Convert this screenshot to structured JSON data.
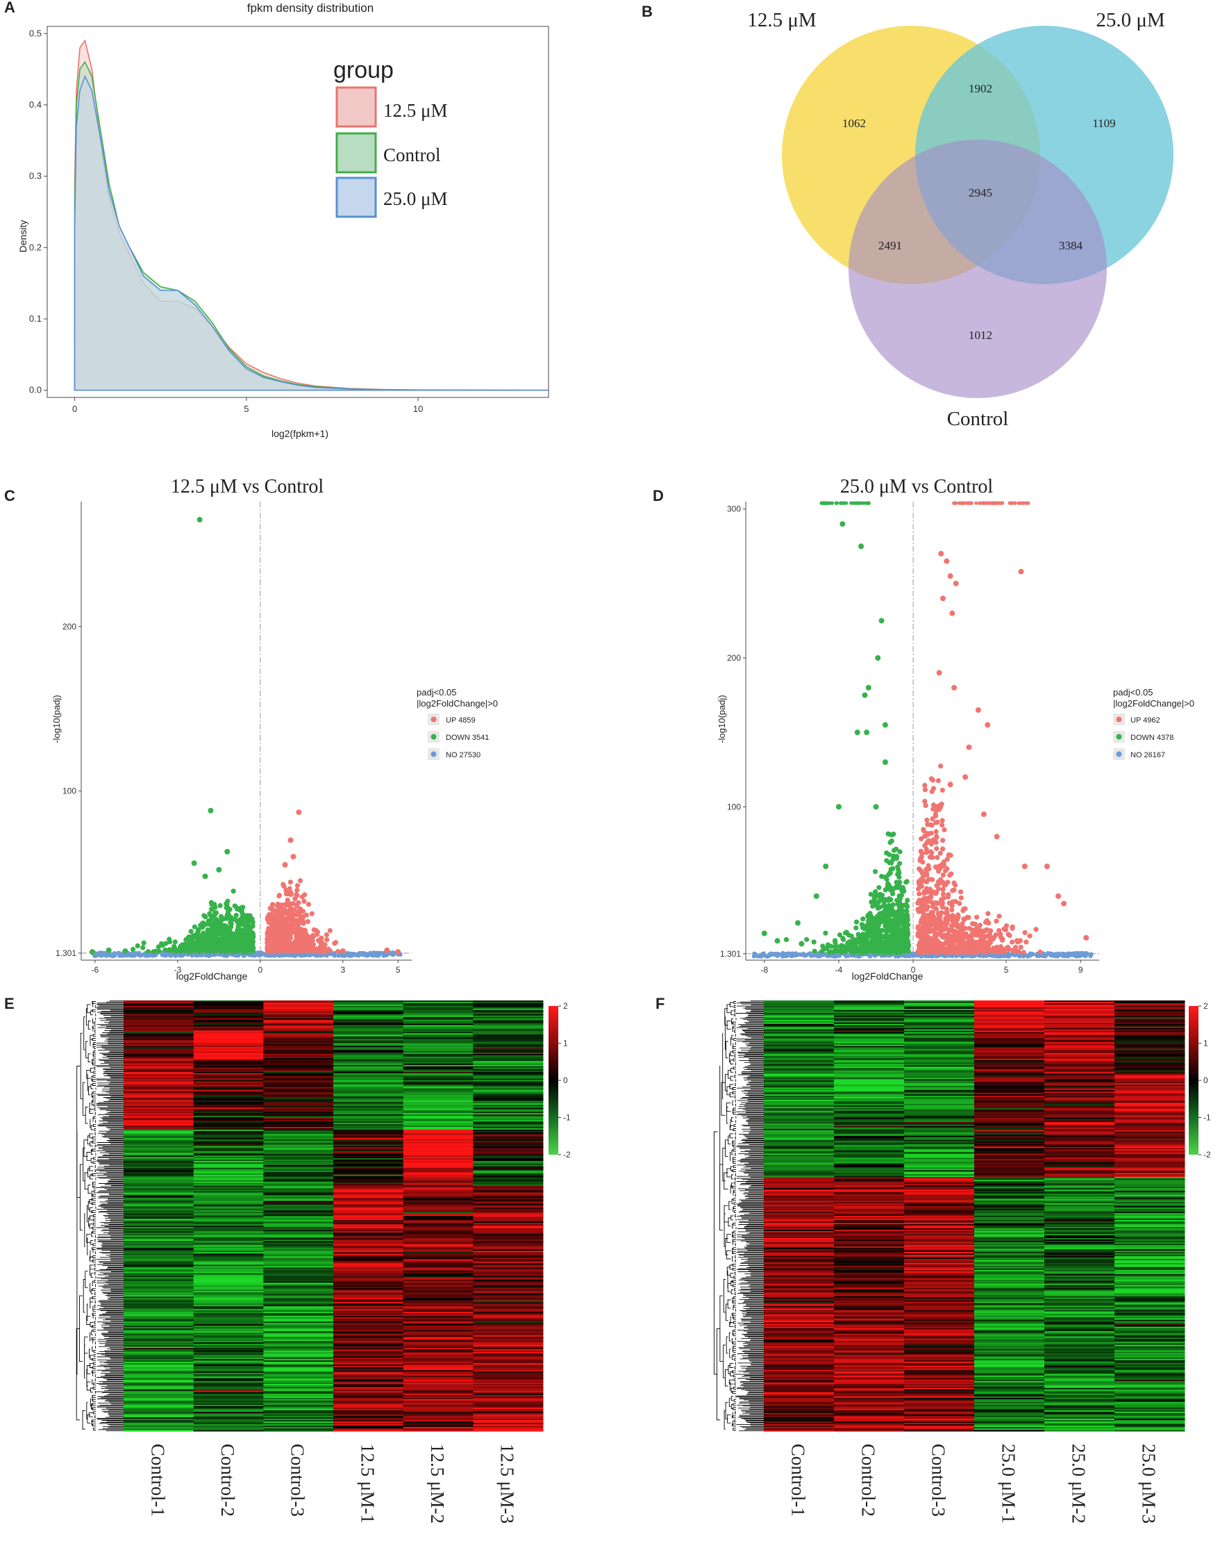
{
  "panels": {
    "A": "A",
    "B": "B",
    "C": "C",
    "D": "D",
    "E": "E",
    "F": "F"
  },
  "chart_data": [
    {
      "panel": "A",
      "type": "area",
      "title": "fpkm density distribution",
      "xlabel": "log2(fpkm+1)",
      "ylabel": "Density",
      "xlim": [
        -0.8,
        13.8
      ],
      "ylim": [
        -0.01,
        0.51
      ],
      "xticks": [
        0,
        5,
        10
      ],
      "yticks": [
        0.0,
        0.1,
        0.2,
        0.3,
        0.4,
        0.5
      ],
      "ytick_labels": [
        "0.0",
        "0.1",
        "0.2",
        "0.3",
        "0.4",
        "0.5"
      ],
      "legend_title": "group",
      "legend_position": "top-right",
      "series": [
        {
          "name": "12.5 μM",
          "color": "#e8756e",
          "fill": "#f2c8c6",
          "x": [
            0,
            0.05,
            0.15,
            0.3,
            0.5,
            0.8,
            1.0,
            1.3,
            1.6,
            2.0,
            2.5,
            3.0,
            3.5,
            4.0,
            4.5,
            5.0,
            5.5,
            6.0,
            6.5,
            7.0,
            8.0,
            9.0,
            10.0,
            12.0,
            13.8
          ],
          "y": [
            0.29,
            0.42,
            0.48,
            0.49,
            0.45,
            0.33,
            0.27,
            0.22,
            0.19,
            0.15,
            0.125,
            0.125,
            0.115,
            0.09,
            0.06,
            0.037,
            0.025,
            0.016,
            0.01,
            0.006,
            0.0025,
            0.001,
            0.0005,
            0.0001,
            0.0
          ]
        },
        {
          "name": "Control",
          "color": "#3fae4a",
          "fill": "#b9ddc3",
          "x": [
            0,
            0.05,
            0.15,
            0.3,
            0.5,
            0.8,
            1.0,
            1.3,
            1.6,
            2.0,
            2.5,
            3.0,
            3.5,
            4.0,
            4.5,
            5.0,
            5.5,
            6.0,
            6.5,
            7.0,
            8.0,
            9.0,
            10.0,
            12.0,
            13.8
          ],
          "y": [
            0.26,
            0.4,
            0.45,
            0.46,
            0.44,
            0.35,
            0.29,
            0.23,
            0.2,
            0.165,
            0.145,
            0.14,
            0.125,
            0.095,
            0.058,
            0.033,
            0.02,
            0.013,
            0.008,
            0.005,
            0.002,
            0.0008,
            0.0004,
            0.0001,
            0.0
          ]
        },
        {
          "name": "25.0 μM",
          "color": "#5b8fd4",
          "fill": "#c4d7ec",
          "x": [
            0,
            0.05,
            0.15,
            0.3,
            0.5,
            0.8,
            1.0,
            1.3,
            1.6,
            2.0,
            2.5,
            3.0,
            3.5,
            4.0,
            4.5,
            5.0,
            5.5,
            6.0,
            6.5,
            7.0,
            8.0,
            9.0,
            10.0,
            12.0,
            13.8
          ],
          "y": [
            0.23,
            0.37,
            0.42,
            0.44,
            0.42,
            0.34,
            0.28,
            0.23,
            0.2,
            0.16,
            0.14,
            0.14,
            0.12,
            0.09,
            0.055,
            0.03,
            0.018,
            0.012,
            0.007,
            0.004,
            0.0018,
            0.0007,
            0.0003,
            0.0001,
            0.0
          ]
        }
      ]
    },
    {
      "panel": "B",
      "type": "venn",
      "sets": [
        {
          "name": "12.5 μM",
          "color": "#f6d84a"
        },
        {
          "name": "25.0 μM",
          "color": "#6ac6d8"
        },
        {
          "name": "Control",
          "color": "#a58bc6"
        }
      ],
      "regions": {
        "12.5 only": 1062,
        "25.0 only": 1109,
        "Control only": 1012,
        "12.5 & 25.0": 1902,
        "12.5 & Control": 2491,
        "25.0 & Control": 3384,
        "all three": 2945
      }
    },
    {
      "panel": "C",
      "type": "scatter",
      "title": "12.5 μM vs Control",
      "xlabel": "log2FoldChange",
      "ylabel": "-log10(padj)",
      "xlim": [
        -6.5,
        5.5
      ],
      "ylim": [
        -3,
        276
      ],
      "xticks": [
        -6,
        -3,
        0,
        3,
        5
      ],
      "yticks": [
        1.301,
        100,
        200
      ],
      "ytick_labels": [
        "1.301",
        "100",
        "200"
      ],
      "threshold_y": 1.301,
      "legend_title": [
        "padj<0.05",
        "|log2FoldChange|>0"
      ],
      "legend": [
        {
          "label": "UP 4859",
          "color": "#f07470"
        },
        {
          "label": "DOWN 3541",
          "color": "#36b24a"
        },
        {
          "label": "NO 27530",
          "color": "#6b9bd8"
        }
      ],
      "down_spread": 4.0,
      "up_spread": 2.6,
      "down_peak": 32,
      "up_peak": 38,
      "outliers_down": [
        [
          -2.2,
          265
        ],
        [
          -1.8,
          88
        ],
        [
          -1.5,
          52
        ],
        [
          -2.0,
          48
        ],
        [
          -2.4,
          56
        ],
        [
          -1.2,
          63
        ],
        [
          -6.1,
          2
        ],
        [
          -5.5,
          3
        ],
        [
          -4.9,
          2.5
        ]
      ],
      "outliers_up": [
        [
          1.4,
          87
        ],
        [
          1.1,
          70
        ],
        [
          1.2,
          60
        ],
        [
          0.9,
          55
        ],
        [
          2.3,
          2
        ],
        [
          3.0,
          2.5
        ],
        [
          4.6,
          3
        ],
        [
          5.0,
          2
        ]
      ]
    },
    {
      "panel": "D",
      "type": "scatter",
      "title": "25.0 μM vs Control",
      "xlabel": "log2FoldChange",
      "ylabel": "-log10(padj)",
      "xlim": [
        -9,
        10
      ],
      "ylim": [
        -3,
        305
      ],
      "xticks": [
        -8,
        -4,
        0,
        5,
        9
      ],
      "yticks": [
        1.301,
        100,
        200,
        300
      ],
      "ytick_labels": [
        "1.301",
        "100",
        "200",
        "300"
      ],
      "threshold_y": 1.301,
      "legend_title": [
        "padj<0.05",
        "|log2FoldChange|>0"
      ],
      "legend": [
        {
          "label": "UP 4962",
          "color": "#f07470"
        },
        {
          "label": "DOWN 4378",
          "color": "#36b24a"
        },
        {
          "label": "NO 26167",
          "color": "#6b9bd8"
        }
      ],
      "down_spread": 5.0,
      "up_spread": 6.5,
      "down_peak": 70,
      "up_peak": 120,
      "outliers_down": [
        [
          -3.8,
          290
        ],
        [
          -2.8,
          275
        ],
        [
          -1.7,
          225
        ],
        [
          -1.9,
          200
        ],
        [
          -2.4,
          180
        ],
        [
          -2.6,
          175
        ],
        [
          -1.5,
          155
        ],
        [
          -3.0,
          150
        ],
        [
          -2.5,
          150
        ],
        [
          -1.5,
          130
        ],
        [
          -4.0,
          100
        ],
        [
          -2.0,
          100
        ],
        [
          -4.7,
          60
        ],
        [
          -5.2,
          40
        ],
        [
          -6.2,
          22
        ],
        [
          -7.3,
          10
        ],
        [
          -8.0,
          15
        ],
        [
          -6.0,
          8
        ]
      ],
      "outliers_up": [
        [
          1.5,
          270
        ],
        [
          1.8,
          265
        ],
        [
          2.0,
          255
        ],
        [
          2.3,
          250
        ],
        [
          5.8,
          258
        ],
        [
          1.6,
          240
        ],
        [
          2.1,
          230
        ],
        [
          1.4,
          190
        ],
        [
          2.2,
          180
        ],
        [
          3.5,
          165
        ],
        [
          4.0,
          155
        ],
        [
          3.0,
          140
        ],
        [
          2.8,
          120
        ],
        [
          2.0,
          115
        ],
        [
          6.0,
          60
        ],
        [
          7.2,
          60
        ],
        [
          7.8,
          40
        ],
        [
          8.1,
          35
        ],
        [
          9.3,
          12
        ],
        [
          4.5,
          80
        ],
        [
          3.8,
          95
        ]
      ],
      "top_down": [
        -5.0,
        -2.2
      ],
      "top_up": [
        2.1,
        6.2
      ]
    },
    {
      "panel": "E",
      "type": "heatmap",
      "columns": [
        "Control-1",
        "Control-2",
        "Control-3",
        "12.5 μM-1",
        "12.5 μM-2",
        "12.5 μM-3"
      ],
      "colorbar_ticks": [
        2,
        1,
        0,
        -1,
        -2
      ],
      "colorbar_tick_labels": [
        "2",
        "1",
        "0",
        "-1",
        "-2"
      ],
      "clusters": [
        {
          "weight": 0.07,
          "values": [
            0.7,
            0.2,
            1.6,
            -1.0,
            -0.8,
            -0.9
          ]
        },
        {
          "weight": 0.07,
          "values": [
            0.6,
            2.0,
            0.6,
            -0.9,
            -1.0,
            -0.7
          ]
        },
        {
          "weight": 0.08,
          "values": [
            1.3,
            0.8,
            0.5,
            -1.1,
            -0.9,
            -0.9
          ]
        },
        {
          "weight": 0.08,
          "values": [
            1.4,
            0.1,
            0.6,
            -1.1,
            -1.5,
            -1.0
          ]
        },
        {
          "weight": 0.06,
          "values": [
            -1.3,
            -0.6,
            -1.1,
            0.2,
            2.0,
            0.3
          ]
        },
        {
          "weight": 0.07,
          "values": [
            -0.7,
            -1.6,
            -0.8,
            0.1,
            1.5,
            -0.5
          ]
        },
        {
          "weight": 0.08,
          "values": [
            -1.0,
            -1.2,
            -1.0,
            1.6,
            0.9,
            1.0
          ]
        },
        {
          "weight": 0.11,
          "values": [
            -1.0,
            -1.1,
            -1.2,
            1.1,
            0.8,
            1.0
          ]
        },
        {
          "weight": 0.09,
          "values": [
            -1.0,
            -1.6,
            -0.9,
            1.2,
            0.7,
            0.7
          ]
        },
        {
          "weight": 0.1,
          "values": [
            -1.2,
            -1.0,
            -1.4,
            0.7,
            1.2,
            1.0
          ]
        },
        {
          "weight": 0.09,
          "values": [
            -1.4,
            -0.8,
            -1.5,
            0.9,
            1.3,
            1.1
          ]
        },
        {
          "weight": 0.1,
          "values": [
            -1.3,
            -0.8,
            -1.2,
            1.0,
            1.1,
            1.3
          ]
        }
      ]
    },
    {
      "panel": "F",
      "type": "heatmap",
      "columns": [
        "Control-1",
        "Control-2",
        "Control-3",
        "25.0 μM-1",
        "25.0 μM-2",
        "25.0 μM-3"
      ],
      "colorbar_ticks": [
        2,
        1,
        0,
        -1,
        -2
      ],
      "colorbar_tick_labels": [
        "2",
        "1",
        "0",
        "-1",
        "-2"
      ],
      "clusters": [
        {
          "weight": 0.08,
          "values": [
            -1.1,
            -1.0,
            -1.0,
            1.6,
            1.4,
            0.4
          ]
        },
        {
          "weight": 0.09,
          "values": [
            -1.0,
            -1.3,
            -1.1,
            1.0,
            1.2,
            0.2
          ]
        },
        {
          "weight": 0.08,
          "values": [
            -1.2,
            -1.7,
            -1.0,
            0.6,
            0.8,
            1.5
          ]
        },
        {
          "weight": 0.08,
          "values": [
            -1.1,
            -0.9,
            -1.2,
            0.4,
            1.1,
            1.1
          ]
        },
        {
          "weight": 0.08,
          "values": [
            -1.3,
            -0.8,
            -1.5,
            0.7,
            0.8,
            1.3
          ]
        },
        {
          "weight": 0.09,
          "values": [
            1.2,
            1.0,
            1.1,
            -0.9,
            -1.0,
            -1.0
          ]
        },
        {
          "weight": 0.1,
          "values": [
            1.0,
            0.9,
            1.3,
            -1.0,
            -0.8,
            -1.2
          ]
        },
        {
          "weight": 0.08,
          "values": [
            0.9,
            0.6,
            1.2,
            -1.2,
            -0.7,
            -1.6
          ]
        },
        {
          "weight": 0.1,
          "values": [
            1.3,
            0.9,
            1.0,
            -1.1,
            -1.0,
            -0.9
          ]
        },
        {
          "weight": 0.11,
          "values": [
            1.0,
            1.4,
            0.8,
            -1.4,
            -0.9,
            -1.0
          ]
        },
        {
          "weight": 0.11,
          "values": [
            0.8,
            1.1,
            1.0,
            -1.0,
            -1.1,
            -1.1
          ]
        }
      ]
    }
  ]
}
